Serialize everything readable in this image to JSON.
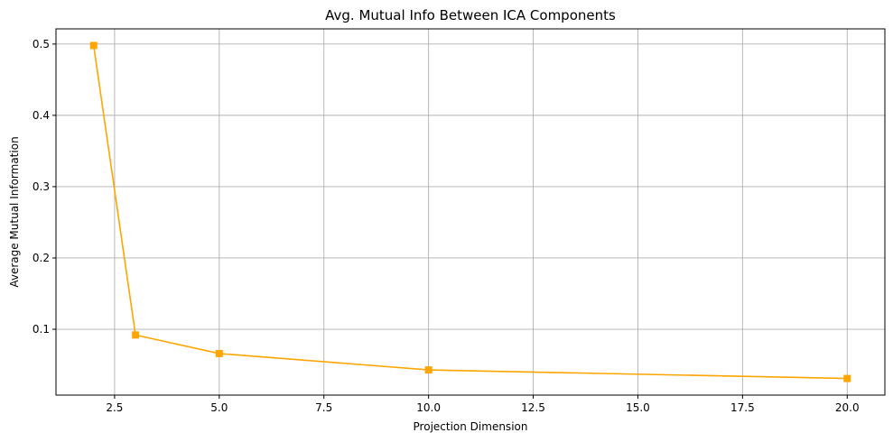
{
  "chart_data": {
    "type": "line",
    "title": "Avg. Mutual Info Between ICA Components",
    "xlabel": "Projection Dimension",
    "ylabel": "Average Mutual Information",
    "x": [
      2,
      3,
      5,
      10,
      20
    ],
    "series": [
      {
        "values": [
          0.498,
          0.092,
          0.066,
          0.043,
          0.031
        ],
        "color": "#ffa500",
        "marker": "square"
      }
    ],
    "xlim": [
      1.1,
      20.9
    ],
    "ylim": [
      0.0077,
      0.5213
    ],
    "xticks": [
      2.5,
      5.0,
      7.5,
      10.0,
      12.5,
      15.0,
      17.5,
      20.0
    ],
    "xtick_labels": [
      "2.5",
      "5.0",
      "7.5",
      "10.0",
      "12.5",
      "15.0",
      "17.5",
      "20.0"
    ],
    "yticks": [
      0.1,
      0.2,
      0.3,
      0.4,
      0.5
    ],
    "ytick_labels": [
      "0.1",
      "0.2",
      "0.3",
      "0.4",
      "0.5"
    ],
    "grid": true,
    "grid_color": "#b0b0b0"
  }
}
